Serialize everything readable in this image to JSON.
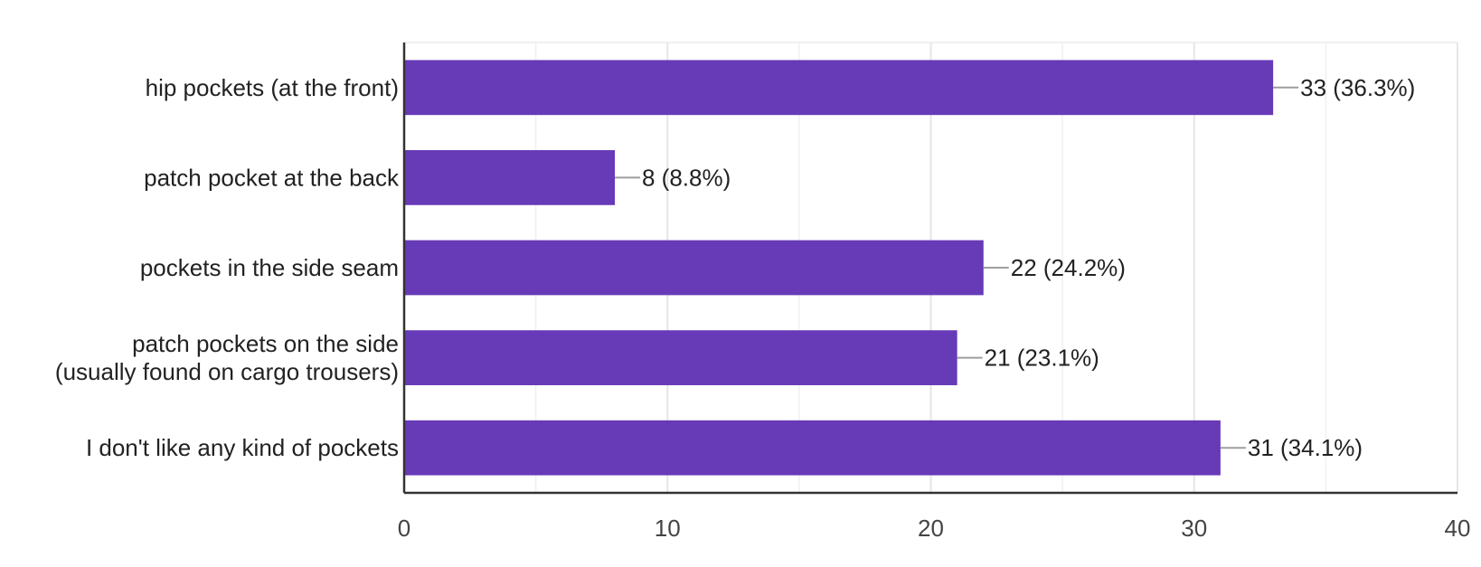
{
  "chart_data": {
    "type": "bar",
    "orientation": "horizontal",
    "categories": [
      [
        "hip pockets (at the front)"
      ],
      [
        "patch pocket at the back"
      ],
      [
        "pockets in the side seam"
      ],
      [
        "patch pockets on the side",
        "(usually found on cargo trousers)"
      ],
      [
        "I don't like any kind of pockets"
      ]
    ],
    "values": [
      33,
      8,
      22,
      21,
      31
    ],
    "value_labels": [
      "33 (36.3%)",
      "8 (8.8%)",
      "22 (24.2%)",
      "21 (23.1%)",
      "31 (34.1%)"
    ],
    "xlim": [
      0,
      40
    ],
    "xticks": [
      0,
      10,
      20,
      30,
      40
    ],
    "minor_gridlines": [
      5,
      15,
      25,
      35
    ],
    "grid": true,
    "title": "",
    "xlabel": "",
    "ylabel": "",
    "colors": {
      "bar": "#673ab7",
      "grid": "#e6e6e6",
      "axis": "#333333",
      "leader": "#9e9e9e"
    }
  }
}
